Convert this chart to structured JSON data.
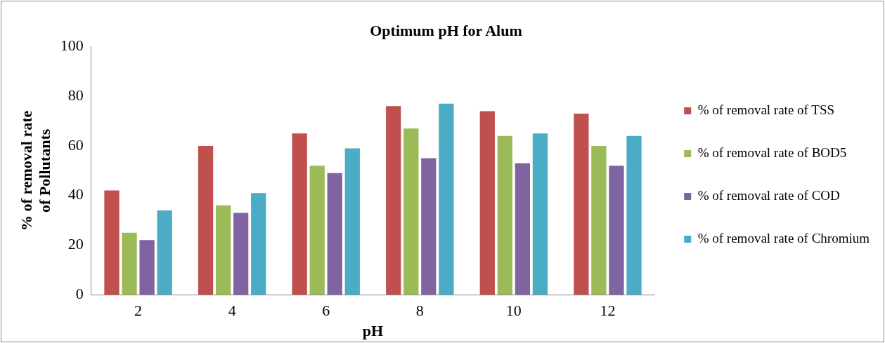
{
  "chart_data": {
    "type": "bar",
    "title": "Optimum pH for Alum",
    "xlabel": "pH",
    "ylabel": "% of removal rate of Pollutants",
    "categories": [
      "2",
      "4",
      "6",
      "8",
      "10",
      "12"
    ],
    "series": [
      {
        "name": "% of removal rate of TSS",
        "color": "#c0504d",
        "values": [
          42,
          60,
          65,
          76,
          74,
          73
        ]
      },
      {
        "name": "% of removal rate of BOD5",
        "color": "#9bbb59",
        "values": [
          25,
          36,
          52,
          67,
          64,
          60
        ]
      },
      {
        "name": "% of removal rate of COD",
        "color": "#8064a2",
        "values": [
          22,
          33,
          49,
          55,
          53,
          52
        ]
      },
      {
        "name": "% of removal rate of Chromium",
        "color": "#4bacc6",
        "values": [
          34,
          41,
          59,
          77,
          65,
          64
        ]
      }
    ],
    "ylim": [
      0,
      100
    ],
    "yticks": [
      0,
      20,
      40,
      60,
      80,
      100
    ],
    "grid": false,
    "legend": "right"
  }
}
